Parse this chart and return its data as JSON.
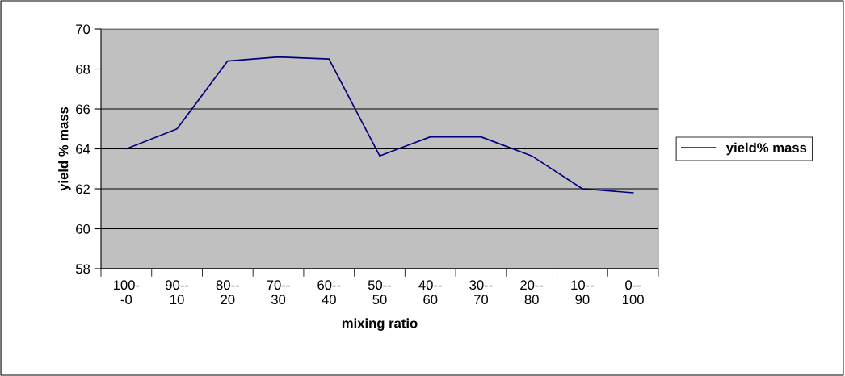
{
  "chart_data": {
    "type": "line",
    "xlabel": "mixing ratio",
    "ylabel": "yield % mass",
    "categories": [
      "100-\n-0",
      "90--\n10",
      "80--\n20",
      "70--\n30",
      "60--\n40",
      "50--\n50",
      "40--\n60",
      "30--\n70",
      "20--\n80",
      "10--\n90",
      "0--\n100"
    ],
    "series": [
      {
        "name": "yield% mass",
        "color": "#000080",
        "values": [
          64.0,
          65.0,
          68.4,
          68.6,
          68.5,
          63.65,
          64.6,
          64.6,
          63.65,
          62.0,
          61.8
        ]
      }
    ],
    "ylim": [
      58,
      70
    ],
    "yticks": [
      58,
      60,
      62,
      64,
      66,
      68,
      70
    ],
    "grid": "y",
    "legend": "right",
    "marker": "none",
    "line_style": "solid"
  }
}
